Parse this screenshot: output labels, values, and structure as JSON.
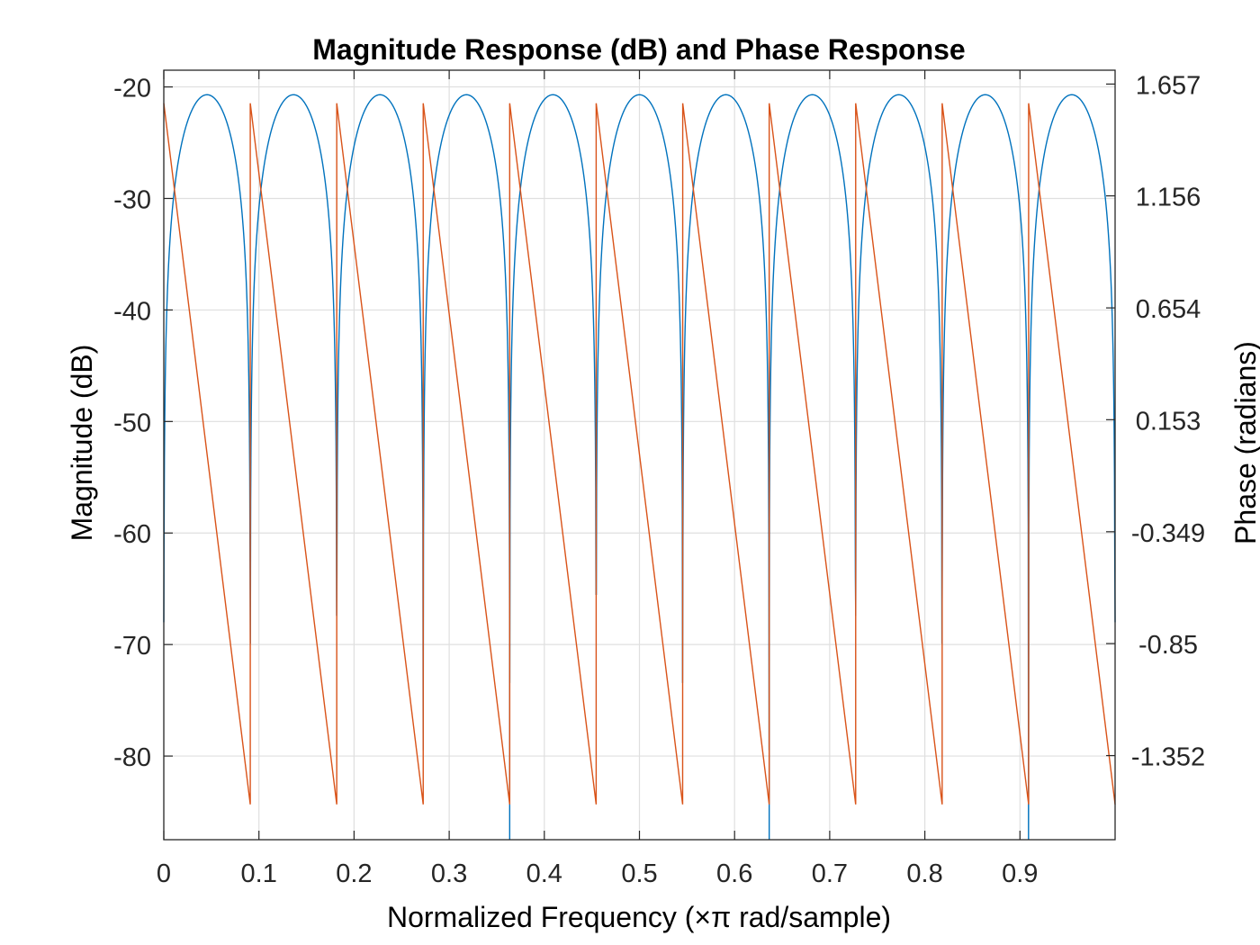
{
  "chart_data": {
    "type": "line",
    "title": "Magnitude Response (dB) and Phase Response",
    "xlabel": "Normalized Frequency (×π rad/sample)",
    "ylabel_left": "Magnitude (dB)",
    "ylabel_right": "Phase (radians)",
    "xlim": [
      0,
      1
    ],
    "ylim_left": [
      -87.5,
      -18.5
    ],
    "ylim_right": [
      -1.7289,
      1.7191
    ],
    "x_ticks": [
      0,
      0.1,
      0.2,
      0.3,
      0.4,
      0.5,
      0.6,
      0.7,
      0.8,
      0.9
    ],
    "x_tick_labels": [
      "0",
      "0.1",
      "0.2",
      "0.3",
      "0.4",
      "0.5",
      "0.6",
      "0.7",
      "0.8",
      "0.9"
    ],
    "y_left_ticks": [
      -80,
      -70,
      -60,
      -50,
      -40,
      -30,
      -20
    ],
    "y_left_tick_labels": [
      "-80",
      "-70",
      "-60",
      "-50",
      "-40",
      "-30",
      "-20"
    ],
    "y_right_ticks": [
      -1.352,
      -0.85,
      -0.349,
      0.153,
      0.654,
      1.156,
      1.657
    ],
    "y_right_tick_labels": [
      "-1.352",
      "-0.85",
      "-0.349",
      "0.153",
      "0.654",
      "1.156",
      "1.657"
    ],
    "grid": true,
    "series": [
      {
        "axis": "left",
        "color": "#0072BD",
        "lobes": 11,
        "null_spacing": 0.0909,
        "peak_value": -20.7,
        "edge_value": -68,
        "deep_nulls_x": [
          0.3636,
          0.6364
        ],
        "deep_null_value": -87.5
      },
      {
        "axis": "right",
        "color": "#D95319",
        "wrap_x": [
          0,
          0.0909,
          0.1818,
          0.2727,
          0.3636,
          0.4545,
          0.5455,
          0.6364,
          0.7273,
          0.8182,
          0.9091
        ],
        "start_value": 1.5708,
        "end_value": -1.5708,
        "segment_width": 0.0909
      }
    ]
  }
}
